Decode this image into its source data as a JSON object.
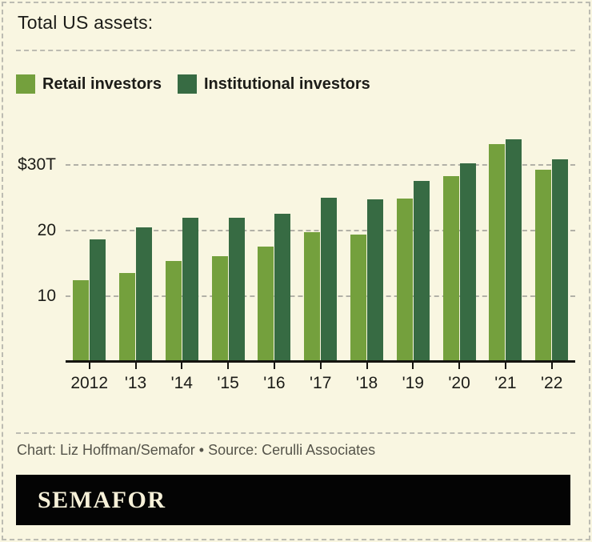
{
  "page": {
    "background_color": "#f9f6e1",
    "border_color": "#bdbcb2"
  },
  "header": {
    "title": "Total US assets:"
  },
  "chart_data": {
    "type": "bar",
    "title": "Total US assets:",
    "unit": "trillions of US dollars",
    "categories": [
      "2012",
      "'13",
      "'14",
      "'15",
      "'16",
      "'17",
      "'18",
      "'19",
      "'20",
      "'21",
      "'22"
    ],
    "series": [
      {
        "name": "Retail investors",
        "color": "#74a03d",
        "values": [
          12.4,
          13.5,
          15.4,
          16.1,
          17.6,
          19.7,
          19.4,
          24.9,
          28.3,
          33.2,
          29.3
        ]
      },
      {
        "name": "Institutional investors",
        "color": "#376b43",
        "values": [
          18.7,
          20.5,
          21.9,
          21.9,
          22.6,
          25.0,
          24.8,
          27.6,
          30.3,
          33.9,
          30.8
        ]
      }
    ],
    "ylim": [
      0,
      36
    ],
    "yticks": [
      {
        "value": 10,
        "label": "10"
      },
      {
        "value": 20,
        "label": "20"
      },
      {
        "value": 30,
        "label": "$30T"
      }
    ],
    "grid": "horizontal dashed",
    "legend_position": "top-left",
    "axis_color": "#15140f",
    "gridline_color": "#b2b1a7"
  },
  "footer": {
    "credit": "Chart: Liz Hoffman/Semafor • Source: Cerulli Associates",
    "brand": "SEMAFOR",
    "brand_background": "#040404",
    "brand_color": "#f6f0d8"
  }
}
